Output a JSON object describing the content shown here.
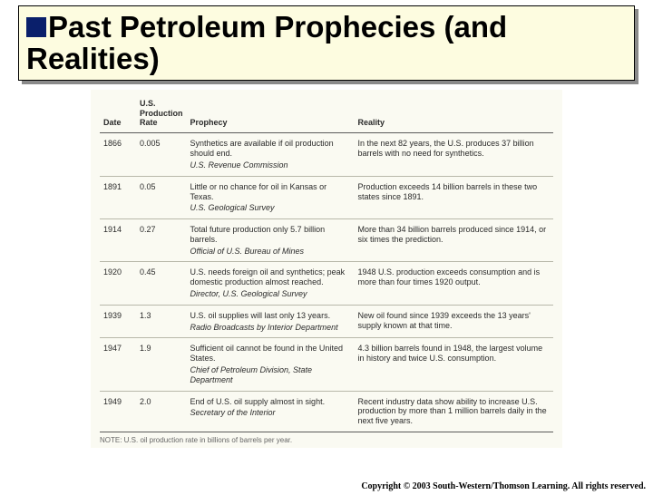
{
  "title": {
    "line": "Past Petroleum Prophecies (and Realities)",
    "bullet_color": "#0a1f6b",
    "title_bg": "#fdfce0",
    "shadow_color": "#8a8a8a",
    "title_fontsize": 33
  },
  "table": {
    "bg_color": "#fafaf2",
    "font_size": 9,
    "note_font_size": 8,
    "headers": {
      "date": "Date",
      "rate_line1": "U.S.",
      "rate_line2": "Production",
      "rate_line3": "Rate",
      "prophecy": "Prophecy",
      "reality": "Reality"
    },
    "rows": [
      {
        "date": "1866",
        "rate": "0.005",
        "prophecy": "Synthetics are available if oil production should end.",
        "source": "U.S. Revenue Commission",
        "reality": "In the next 82 years, the U.S. produces 37 billion barrels with no need for synthetics."
      },
      {
        "date": "1891",
        "rate": "0.05",
        "prophecy": "Little or no chance for oil in Kansas or Texas.",
        "source": "U.S. Geological Survey",
        "reality": "Production exceeds 14 billion barrels in these two states since 1891."
      },
      {
        "date": "1914",
        "rate": "0.27",
        "prophecy": "Total future production only 5.7 billion barrels.",
        "source": "Official of U.S. Bureau of Mines",
        "reality": "More than 34 billion barrels produced since 1914, or six times the prediction."
      },
      {
        "date": "1920",
        "rate": "0.45",
        "prophecy": "U.S. needs foreign oil and synthetics; peak domestic production almost reached.",
        "source": "Director, U.S. Geological Survey",
        "reality": "1948 U.S. production exceeds consumption and is more than four times 1920 output."
      },
      {
        "date": "1939",
        "rate": "1.3",
        "prophecy": "U.S. oil supplies will last only 13 years.",
        "source": "Radio Broadcasts by Interior Department",
        "reality": "New oil found since 1939 exceeds the 13 years' supply known at that time."
      },
      {
        "date": "1947",
        "rate": "1.9",
        "prophecy": "Sufficient oil cannot be found in the United States.",
        "source": "Chief of Petroleum Division, State Department",
        "reality": "4.3 billion barrels found in 1948, the largest volume in history and twice U.S. consumption."
      },
      {
        "date": "1949",
        "rate": "2.0",
        "prophecy": "End of U.S. oil supply almost in sight.",
        "source": "Secretary of the Interior",
        "reality": "Recent industry data show ability to increase U.S. production by more than 1 million barrels daily in the next five years."
      }
    ],
    "note": "NOTE: U.S. oil production rate in billions of barrels per year."
  },
  "copyright": "Copyright © 2003 South-Western/Thomson Learning. All rights reserved."
}
